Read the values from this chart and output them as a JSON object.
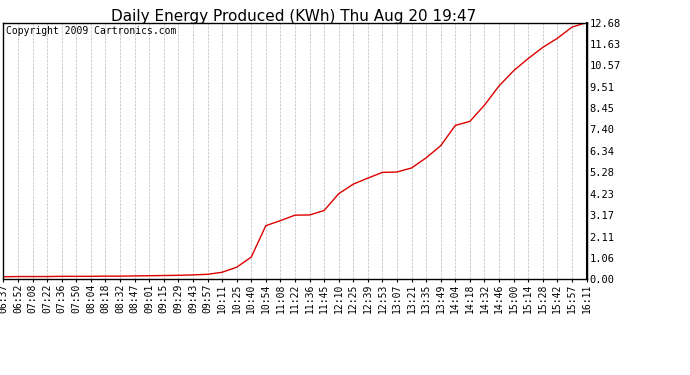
{
  "title": "Daily Energy Produced (KWh) Thu Aug 20 19:47",
  "copyright_text": "Copyright 2009 Cartronics.com",
  "line_color": "#dd0000",
  "background_color": "#ffffff",
  "plot_bg_color": "#ffffff",
  "grid_color": "#bbbbbb",
  "ytick_labels": [
    "0.00",
    "1.06",
    "2.11",
    "3.17",
    "4.23",
    "5.28",
    "6.34",
    "7.40",
    "8.45",
    "9.51",
    "10.57",
    "11.63",
    "12.68"
  ],
  "ytick_values": [
    0.0,
    1.06,
    2.11,
    3.17,
    4.23,
    5.28,
    6.34,
    7.4,
    8.45,
    9.51,
    10.57,
    11.63,
    12.68
  ],
  "xtick_labels": [
    "06:37",
    "06:52",
    "07:08",
    "07:22",
    "07:36",
    "07:50",
    "08:04",
    "08:18",
    "08:32",
    "08:47",
    "09:01",
    "09:15",
    "09:29",
    "09:43",
    "09:57",
    "10:11",
    "10:25",
    "10:40",
    "10:54",
    "11:08",
    "11:22",
    "11:36",
    "11:45",
    "12:10",
    "12:25",
    "12:39",
    "12:53",
    "13:07",
    "13:21",
    "13:35",
    "13:49",
    "14:04",
    "14:18",
    "14:32",
    "14:46",
    "15:00",
    "15:14",
    "15:28",
    "15:42",
    "15:57",
    "16:11"
  ],
  "raw_y": [
    0.13,
    0.14,
    0.14,
    0.14,
    0.15,
    0.15,
    0.15,
    0.16,
    0.16,
    0.17,
    0.18,
    0.19,
    0.2,
    0.22,
    0.25,
    0.35,
    0.6,
    1.1,
    2.65,
    2.9,
    3.17,
    3.18,
    3.4,
    4.23,
    4.7,
    5.0,
    5.28,
    5.3,
    5.5,
    6.0,
    6.6,
    7.6,
    7.8,
    8.6,
    9.55,
    10.3,
    10.9,
    11.45,
    11.9,
    12.45,
    12.68
  ],
  "ylim": [
    0.0,
    12.68
  ],
  "title_fontsize": 11,
  "copyright_fontsize": 7,
  "tick_fontsize": 7
}
